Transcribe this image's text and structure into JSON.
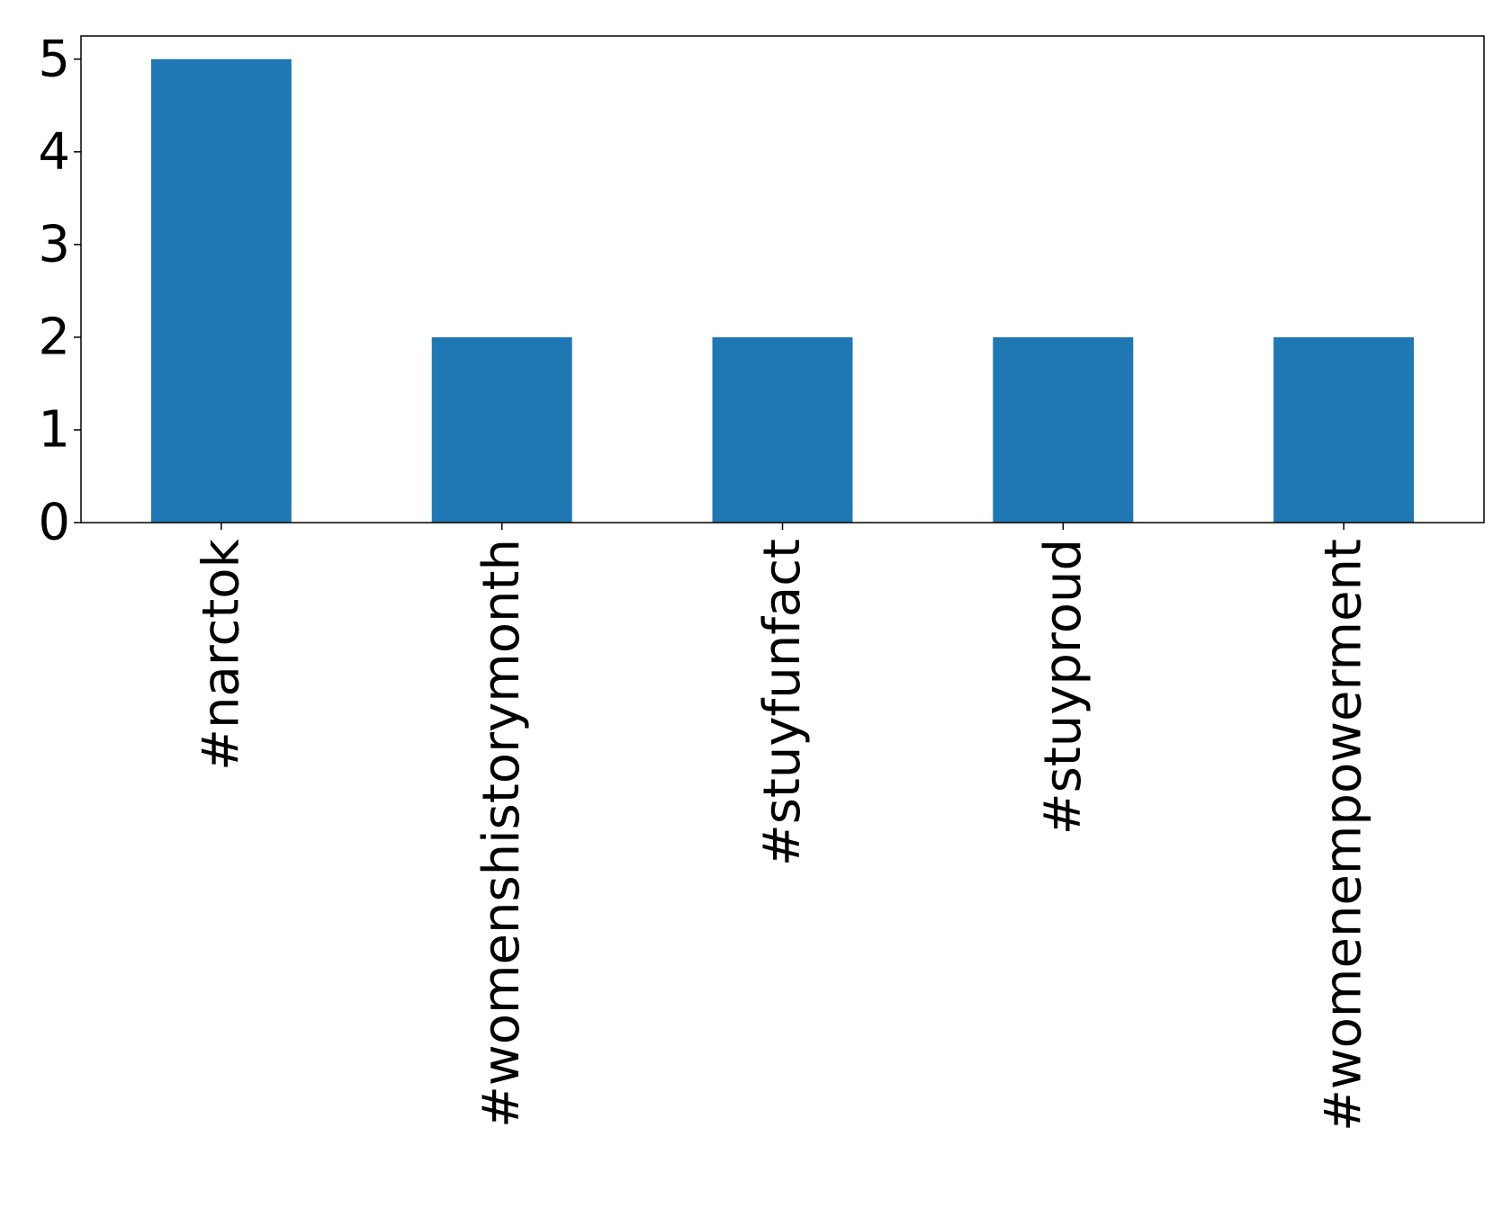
{
  "chart_data": {
    "type": "bar",
    "categories": [
      "#narctok",
      "#womenshistorymonth",
      "#stuyfunfact",
      "#stuyproud",
      "#womenempowerment"
    ],
    "values": [
      5,
      2,
      2,
      2,
      2
    ],
    "title": "",
    "xlabel": "",
    "ylabel": "",
    "ylim": [
      0,
      5.25
    ],
    "yticks": [
      0,
      1,
      2,
      3,
      4,
      5
    ],
    "xtick_rotation": "vertical",
    "grid": false,
    "legend": "none",
    "bar_color": "#1f77b4",
    "axes_color": "#000000"
  }
}
